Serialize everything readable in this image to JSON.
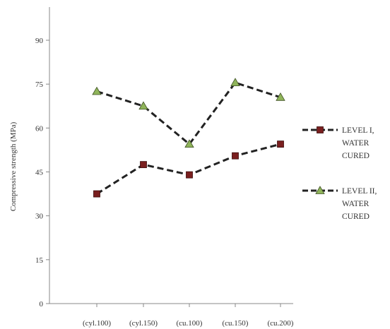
{
  "chart_data": {
    "type": "line",
    "categories": [
      "(cyl.100)",
      "(cyl.150)",
      "(cu.100)",
      "(cu.150)",
      "(cu.200)"
    ],
    "ylabel": "Compressive strength (MPa)",
    "xlabel": "",
    "title": "",
    "ylim": [
      0,
      90
    ],
    "yticks": [
      "0",
      "15",
      "30",
      "45",
      "60",
      "75",
      "90"
    ],
    "grid": false,
    "legend_position": "right",
    "series": [
      {
        "name_lines": [
          "LEVEL I,",
          "WATER",
          "CURED"
        ],
        "values": [
          37.5,
          47.5,
          44,
          50.5,
          54.5
        ],
        "color": "#222222",
        "marker": "square",
        "marker_color": "#7a1f1f"
      },
      {
        "name_lines": [
          "LEVEL II,",
          "WATER",
          "CURED"
        ],
        "values": [
          72.5,
          67.5,
          54.5,
          75.5,
          70.5
        ],
        "color": "#222222",
        "marker": "triangle",
        "marker_color": "#8fb45a"
      }
    ]
  }
}
